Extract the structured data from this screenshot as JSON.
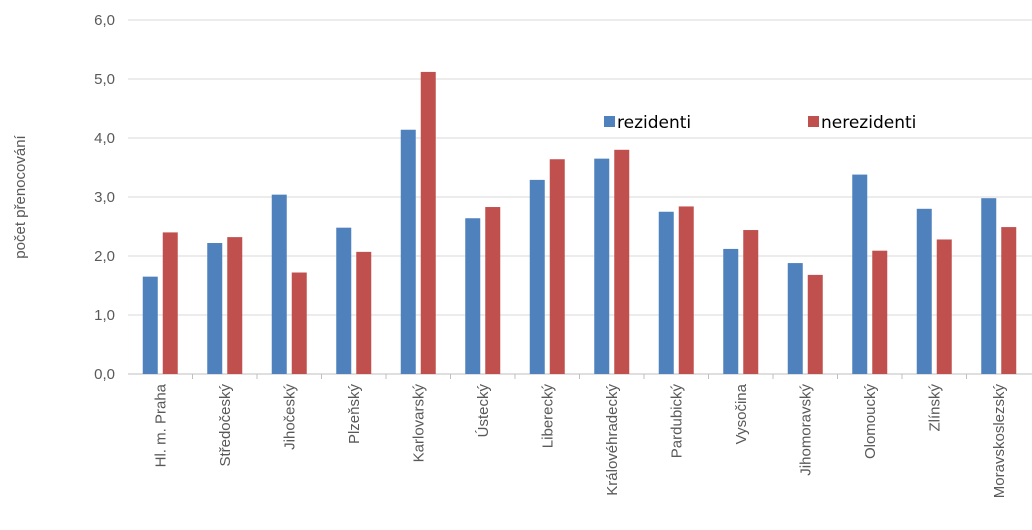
{
  "chart_data": {
    "type": "bar",
    "title": "",
    "xlabel": "",
    "ylabel": "počet přenocování",
    "ylim": [
      0,
      6
    ],
    "yticks": [
      "0,0",
      "1,0",
      "2,0",
      "3,0",
      "4,0",
      "5,0",
      "6,0"
    ],
    "grid": true,
    "legend_position": "top-right",
    "categories": [
      "Hl. m. Praha",
      "Středočeský",
      "Jihočeský",
      "Plzeňský",
      "Karlovarský",
      "Ústecký",
      "Liberecký",
      "Královéhradecký",
      "Pardubický",
      "Vysočina",
      "Jihomoravský",
      "Olomoucký",
      "Zlínský",
      "Moravskoslezský"
    ],
    "series": [
      {
        "name": "rezidenti",
        "color": "#4f81bd",
        "values": [
          1.65,
          2.22,
          3.04,
          2.48,
          4.14,
          2.64,
          3.29,
          3.65,
          2.75,
          2.12,
          1.88,
          3.38,
          2.8,
          2.98
        ]
      },
      {
        "name": "nerezidenti",
        "color": "#c0504d",
        "values": [
          2.4,
          2.32,
          1.72,
          2.07,
          5.12,
          2.83,
          3.64,
          3.8,
          2.84,
          2.44,
          1.68,
          2.09,
          2.28,
          2.49
        ]
      }
    ]
  }
}
